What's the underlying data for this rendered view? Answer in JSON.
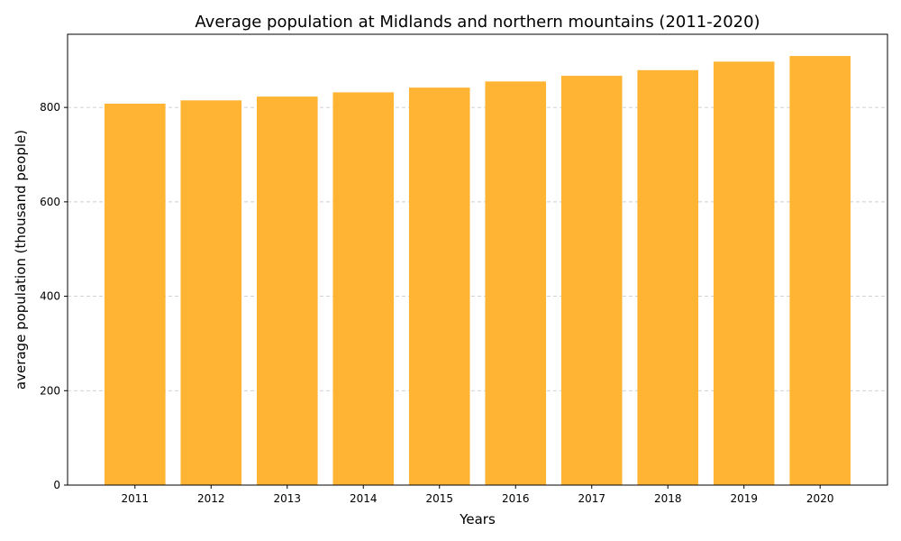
{
  "chart_data": {
    "type": "bar",
    "title": "Average population at Midlands and northern mountains (2011-2020)",
    "xlabel": "Years",
    "ylabel": "average population (thousand people)",
    "categories": [
      "2011",
      "2012",
      "2013",
      "2014",
      "2015",
      "2016",
      "2017",
      "2018",
      "2019",
      "2020"
    ],
    "values": [
      808,
      815,
      823,
      832,
      842,
      855,
      867,
      879,
      897,
      909
    ],
    "ylim": [
      0,
      955
    ],
    "yticks": [
      0,
      200,
      400,
      600,
      800
    ],
    "grid": "y-dashed",
    "bar_color": "#ffb533"
  }
}
